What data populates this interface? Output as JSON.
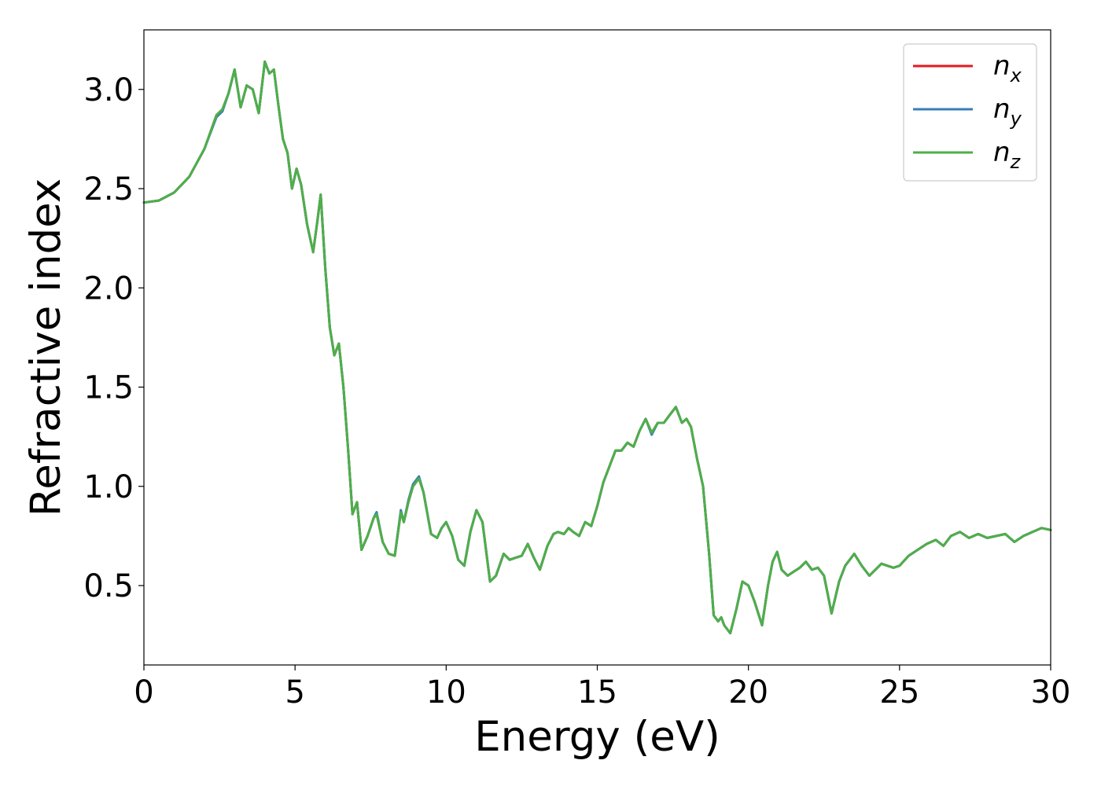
{
  "chart_data": {
    "type": "line",
    "xlabel": "Energy (eV)",
    "ylabel": "Refractive index",
    "xlim": [
      0,
      30
    ],
    "ylim": [
      0.1,
      3.3
    ],
    "x_ticks": [
      0,
      5,
      10,
      15,
      20,
      25,
      30
    ],
    "x_tick_labels": [
      "0",
      "5",
      "10",
      "15",
      "20",
      "25",
      "30"
    ],
    "y_ticks": [
      0.5,
      1.0,
      1.5,
      2.0,
      2.5,
      3.0
    ],
    "y_tick_labels": [
      "0.5",
      "1.0",
      "1.5",
      "2.0",
      "2.5",
      "3.0"
    ],
    "grid": false,
    "legend_position": "top-right",
    "x": [
      0,
      0.5,
      1.0,
      1.5,
      2.0,
      2.4,
      2.6,
      2.8,
      3.0,
      3.2,
      3.4,
      3.6,
      3.8,
      4.0,
      4.15,
      4.3,
      4.45,
      4.6,
      4.75,
      4.9,
      5.05,
      5.2,
      5.4,
      5.6,
      5.75,
      5.85,
      6.0,
      6.15,
      6.3,
      6.45,
      6.6,
      6.75,
      6.9,
      7.05,
      7.2,
      7.4,
      7.6,
      7.7,
      7.9,
      8.1,
      8.3,
      8.5,
      8.6,
      8.75,
      8.9,
      9.1,
      9.25,
      9.5,
      9.7,
      9.85,
      10.0,
      10.2,
      10.4,
      10.6,
      10.8,
      11.0,
      11.2,
      11.45,
      11.65,
      11.9,
      12.1,
      12.3,
      12.5,
      12.7,
      12.9,
      13.1,
      13.35,
      13.55,
      13.7,
      13.9,
      14.05,
      14.2,
      14.4,
      14.6,
      14.8,
      15.0,
      15.2,
      15.4,
      15.6,
      15.8,
      16.0,
      16.2,
      16.4,
      16.6,
      16.8,
      17.0,
      17.2,
      17.4,
      17.6,
      17.8,
      17.95,
      18.1,
      18.3,
      18.5,
      18.7,
      18.85,
      19.0,
      19.1,
      19.2,
      19.4,
      19.6,
      19.8,
      20.0,
      20.2,
      20.45,
      20.65,
      20.8,
      20.95,
      21.1,
      21.3,
      21.5,
      21.7,
      21.9,
      22.1,
      22.3,
      22.5,
      22.75,
      23.0,
      23.2,
      23.5,
      23.75,
      24.0,
      24.2,
      24.4,
      24.6,
      24.8,
      25.0,
      25.3,
      25.6,
      25.9,
      26.2,
      26.45,
      26.7,
      27.0,
      27.3,
      27.6,
      27.9,
      28.2,
      28.5,
      28.8,
      29.1,
      29.4,
      29.7,
      30.0
    ],
    "series": [
      {
        "name": "n_x",
        "color": "#e41a1c",
        "values": [
          2.43,
          2.44,
          2.48,
          2.56,
          2.7,
          2.87,
          2.9,
          2.98,
          3.1,
          2.91,
          3.02,
          3.0,
          2.88,
          3.14,
          3.08,
          3.1,
          2.92,
          2.75,
          2.68,
          2.5,
          2.6,
          2.52,
          2.32,
          2.18,
          2.35,
          2.47,
          2.1,
          1.8,
          1.66,
          1.72,
          1.5,
          1.2,
          0.86,
          0.92,
          0.68,
          0.75,
          0.84,
          0.86,
          0.72,
          0.66,
          0.65,
          0.87,
          0.82,
          0.92,
          1.0,
          1.04,
          0.97,
          0.76,
          0.74,
          0.79,
          0.82,
          0.75,
          0.63,
          0.6,
          0.77,
          0.88,
          0.82,
          0.52,
          0.55,
          0.66,
          0.63,
          0.64,
          0.65,
          0.71,
          0.64,
          0.58,
          0.7,
          0.76,
          0.77,
          0.76,
          0.79,
          0.77,
          0.75,
          0.82,
          0.8,
          0.9,
          1.02,
          1.1,
          1.18,
          1.18,
          1.22,
          1.2,
          1.28,
          1.34,
          1.27,
          1.32,
          1.32,
          1.36,
          1.4,
          1.32,
          1.34,
          1.3,
          1.14,
          1.0,
          0.66,
          0.35,
          0.32,
          0.34,
          0.3,
          0.26,
          0.38,
          0.52,
          0.5,
          0.42,
          0.3,
          0.5,
          0.62,
          0.67,
          0.58,
          0.55,
          0.57,
          0.59,
          0.62,
          0.58,
          0.59,
          0.55,
          0.36,
          0.52,
          0.6,
          0.66,
          0.6,
          0.55,
          0.58,
          0.61,
          0.6,
          0.59,
          0.6,
          0.65,
          0.68,
          0.71,
          0.73,
          0.7,
          0.75,
          0.77,
          0.74,
          0.76,
          0.74,
          0.75,
          0.76,
          0.72,
          0.75,
          0.77,
          0.79,
          0.78
        ]
      },
      {
        "name": "n_y",
        "color": "#377eb8",
        "values": [
          2.43,
          2.44,
          2.48,
          2.56,
          2.7,
          2.86,
          2.89,
          2.98,
          3.1,
          2.91,
          3.02,
          3.0,
          2.88,
          3.14,
          3.08,
          3.1,
          2.92,
          2.75,
          2.68,
          2.5,
          2.6,
          2.52,
          2.32,
          2.18,
          2.35,
          2.47,
          2.1,
          1.8,
          1.66,
          1.72,
          1.5,
          1.2,
          0.86,
          0.92,
          0.68,
          0.75,
          0.84,
          0.87,
          0.72,
          0.66,
          0.65,
          0.88,
          0.82,
          0.93,
          1.01,
          1.05,
          0.97,
          0.76,
          0.74,
          0.79,
          0.82,
          0.75,
          0.63,
          0.6,
          0.77,
          0.88,
          0.82,
          0.52,
          0.55,
          0.66,
          0.63,
          0.64,
          0.65,
          0.71,
          0.64,
          0.58,
          0.7,
          0.76,
          0.77,
          0.76,
          0.79,
          0.77,
          0.75,
          0.82,
          0.8,
          0.9,
          1.02,
          1.1,
          1.18,
          1.18,
          1.22,
          1.2,
          1.28,
          1.34,
          1.26,
          1.32,
          1.32,
          1.36,
          1.4,
          1.32,
          1.34,
          1.3,
          1.14,
          1.0,
          0.66,
          0.35,
          0.32,
          0.34,
          0.3,
          0.26,
          0.38,
          0.52,
          0.5,
          0.42,
          0.3,
          0.5,
          0.62,
          0.67,
          0.58,
          0.55,
          0.57,
          0.59,
          0.62,
          0.58,
          0.59,
          0.55,
          0.36,
          0.52,
          0.6,
          0.66,
          0.6,
          0.55,
          0.58,
          0.61,
          0.6,
          0.59,
          0.6,
          0.65,
          0.68,
          0.71,
          0.73,
          0.7,
          0.75,
          0.77,
          0.74,
          0.76,
          0.74,
          0.75,
          0.76,
          0.72,
          0.75,
          0.77,
          0.79,
          0.78
        ]
      },
      {
        "name": "n_z",
        "color": "#4daf4a",
        "values": [
          2.43,
          2.44,
          2.48,
          2.56,
          2.7,
          2.87,
          2.9,
          2.98,
          3.1,
          2.91,
          3.02,
          3.0,
          2.88,
          3.14,
          3.08,
          3.1,
          2.92,
          2.75,
          2.68,
          2.5,
          2.6,
          2.52,
          2.32,
          2.18,
          2.35,
          2.47,
          2.1,
          1.8,
          1.66,
          1.72,
          1.5,
          1.2,
          0.86,
          0.92,
          0.68,
          0.75,
          0.84,
          0.86,
          0.72,
          0.66,
          0.65,
          0.87,
          0.82,
          0.92,
          1.0,
          1.04,
          0.97,
          0.76,
          0.74,
          0.79,
          0.82,
          0.75,
          0.63,
          0.6,
          0.77,
          0.88,
          0.82,
          0.52,
          0.55,
          0.66,
          0.63,
          0.64,
          0.65,
          0.71,
          0.64,
          0.58,
          0.7,
          0.76,
          0.77,
          0.76,
          0.79,
          0.77,
          0.75,
          0.82,
          0.8,
          0.9,
          1.02,
          1.1,
          1.18,
          1.18,
          1.22,
          1.2,
          1.28,
          1.34,
          1.27,
          1.32,
          1.32,
          1.36,
          1.4,
          1.32,
          1.34,
          1.3,
          1.14,
          1.0,
          0.66,
          0.35,
          0.32,
          0.34,
          0.3,
          0.26,
          0.38,
          0.52,
          0.5,
          0.42,
          0.3,
          0.5,
          0.62,
          0.67,
          0.58,
          0.55,
          0.57,
          0.59,
          0.62,
          0.58,
          0.59,
          0.55,
          0.36,
          0.52,
          0.6,
          0.66,
          0.6,
          0.55,
          0.58,
          0.61,
          0.6,
          0.59,
          0.6,
          0.65,
          0.68,
          0.71,
          0.73,
          0.7,
          0.75,
          0.77,
          0.74,
          0.76,
          0.74,
          0.75,
          0.76,
          0.72,
          0.75,
          0.77,
          0.79,
          0.78
        ]
      }
    ],
    "legend": [
      {
        "base": "n",
        "sub": "x",
        "color": "#e41a1c"
      },
      {
        "base": "n",
        "sub": "y",
        "color": "#377eb8"
      },
      {
        "base": "n",
        "sub": "z",
        "color": "#4daf4a"
      }
    ]
  }
}
